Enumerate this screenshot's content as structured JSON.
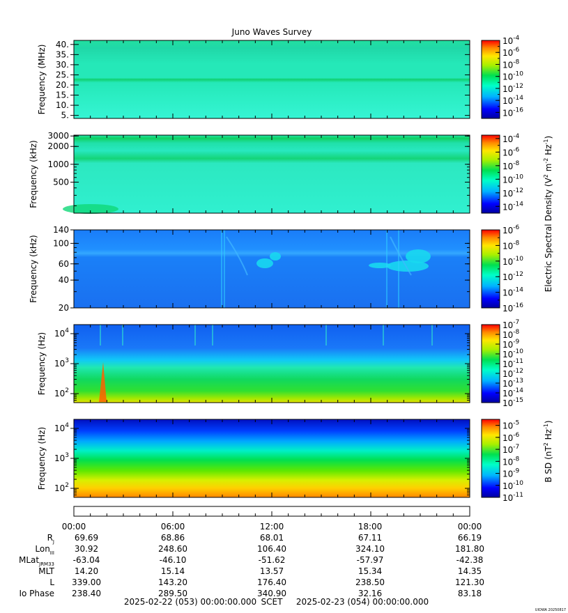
{
  "title": "Juno Waves Survey",
  "chart_data": {
    "type": "heatmap",
    "panels": [
      {
        "ylabel": "Frequency (MHz)",
        "scale": "linear",
        "ylim": [
          3.5,
          42
        ],
        "ticks": [
          5,
          10,
          15,
          20,
          25,
          30,
          35,
          40
        ],
        "tick_labels": [
          "5.",
          "10.",
          "15.",
          "20.",
          "25.",
          "30.",
          "35.",
          "40."
        ],
        "colorbar_exponents": [
          "-4",
          "-6",
          "-8",
          "-10",
          "-12",
          "-14",
          "-16"
        ],
        "colorbar_range": [
          -17,
          -4
        ],
        "base_level": 0.44
      },
      {
        "ylabel": "Frequency (kHz)",
        "scale": "log",
        "ylim": [
          150,
          3100
        ],
        "ticks": [
          500,
          1000,
          2000,
          3000
        ],
        "tick_labels": [
          "500",
          "1000",
          "2000",
          "3000"
        ],
        "colorbar_exponents": [
          "-4",
          "-6",
          "-8",
          "-10",
          "-12",
          "-14"
        ],
        "colorbar_range": [
          -15,
          -3.5
        ],
        "base_level": 0.43
      },
      {
        "ylabel": "Frequency (kHz)",
        "scale": "log",
        "ylim": [
          20,
          140
        ],
        "ticks": [
          20,
          40,
          60,
          100,
          140
        ],
        "tick_labels": [
          "20",
          "40",
          "60",
          "100",
          "140"
        ],
        "colorbar_exponents": [
          "-6",
          "-8",
          "-10",
          "-12",
          "-14",
          "-16"
        ],
        "colorbar_range": [
          -16,
          -6
        ],
        "base_level": 0.3
      },
      {
        "ylabel": "Frequency (Hz)",
        "scale": "log",
        "ylim": [
          50,
          20000
        ],
        "ticks": [
          100,
          1000,
          10000
        ],
        "tick_labels": [
          "10",
          "10",
          "10"
        ],
        "tick_exponents": [
          "2",
          "3",
          "4"
        ],
        "colorbar_exponents": [
          "-7",
          "-8",
          "-9",
          "-10",
          "-11",
          "-12",
          "-13",
          "-14",
          "-15"
        ],
        "colorbar_range": [
          -15,
          -7
        ],
        "base_level": 0.5
      },
      {
        "ylabel": "Frequency (Hz)",
        "scale": "log",
        "ylim": [
          50,
          20000
        ],
        "ticks": [
          100,
          1000,
          10000
        ],
        "tick_labels": [
          "10",
          "10",
          "10"
        ],
        "tick_exponents": [
          "2",
          "3",
          "4"
        ],
        "colorbar_exponents": [
          "-5",
          "-6",
          "-7",
          "-8",
          "-9",
          "-10",
          "-11"
        ],
        "colorbar_range": [
          -11,
          -4.5
        ],
        "base_level": 0.5
      }
    ],
    "colorbar_title_electric": "Electric Spectral Density (V",
    "colorbar_title_electric_sup1": "2",
    "colorbar_title_electric_mid": " m",
    "colorbar_title_electric_sup2": "-2",
    "colorbar_title_electric_mid2": " Hz",
    "colorbar_title_electric_sup3": "-1",
    "colorbar_title_electric_end": ")",
    "colorbar_title_magnetic": "B SD (nT",
    "colorbar_title_magnetic_sup1": "2",
    "colorbar_title_magnetic_mid": " Hz",
    "colorbar_title_magnetic_sup2": "-1",
    "colorbar_title_magnetic_end": ")",
    "time_labels": [
      "00:00",
      "06:00",
      "12:00",
      "18:00",
      "00:00"
    ],
    "ephemeris": [
      {
        "label": "R",
        "sub": "J",
        "values": [
          "69.69",
          "68.86",
          "68.01",
          "67.11",
          "66.19"
        ]
      },
      {
        "label": "Lon",
        "sub": "III",
        "values": [
          "30.92",
          "248.60",
          "106.40",
          "324.10",
          "181.80"
        ]
      },
      {
        "label": "MLat",
        "sub": "JRM33",
        "values": [
          "-63.04",
          "-46.10",
          "-51.62",
          "-57.97",
          "-42.38"
        ]
      },
      {
        "label": "MLT",
        "sub": "",
        "values": [
          "14.20",
          "15.14",
          "13.57",
          "15.34",
          "14.35"
        ]
      },
      {
        "label": "L",
        "sub": "",
        "values": [
          "339.00",
          "143.20",
          "176.40",
          "238.50",
          "121.30"
        ]
      },
      {
        "label": "Io Phase",
        "sub": "",
        "values": [
          "238.40",
          "289.50",
          "340.90",
          "32.16",
          "83.18"
        ]
      }
    ],
    "start_time": "2025-02-22 (053) 00:00:00.000",
    "scet": "SCET",
    "end_time": "2025-02-23 (054) 00:00:00.000"
  },
  "footer_tag": "UIOWA 20250817"
}
